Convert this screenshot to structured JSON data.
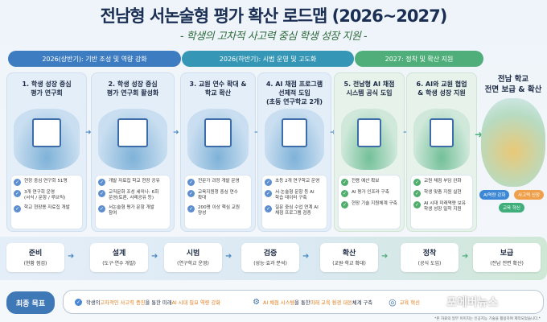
{
  "title": "전남형 서논술형 평가 확산 로드맵 (2026~2027)",
  "subtitle": "- 학생의 고차적 사고력 중심 학생 성장 지원 -",
  "phases": [
    {
      "label": "2026(상반기): 기반 조성 및 역량 강화",
      "color": "#3d7cc0"
    },
    {
      "label": "2026(하반기): 시범 운영 및 고도화",
      "color": "#3596b5"
    },
    {
      "label": "2027: 정착 및 확산 지원",
      "color": "#4fae7a"
    }
  ],
  "cards": [
    {
      "title": "1. 학생 성장 중심\n평가 연구회",
      "bullets": [
        "현장 중심 연구회 51명",
        "3개 연구회 운영\n(서식 / 문항 / 루브릭)",
        "학교 현장용 자료집 개발"
      ]
    },
    {
      "title": "2. 학생 성장 중심\n평가 연구회 활성화",
      "bullets": [
        "개발 자료집 학교 현장 공유",
        "교직문화 조성 세미나: 6회\n운영(토론, 사례공유 등)",
        "서논술형 평가 문항 개발\n참여"
      ]
    },
    {
      "title": "3. 교원 연수 확대 &\n학교 확산",
      "bullets": [
        "전문가 과정 개발 운영",
        "교육지원청 중심 연수\n확대",
        "200명 이상 핵심 교원\n양성"
      ]
    },
    {
      "title": "4. AI 채점 프로그램\n선제적 도입\n(초등 연구학교 2개)",
      "bullets": [
        "초등 2개 연구학교 운영",
        "서·논술형 문항 등 AI\n학습 데이터 구축",
        "질문 중심 수업 연계 AI\n채점 프로그램 검증"
      ]
    },
    {
      "title": "5. 전남형 AI 채점\n시스템 공식 도입",
      "bullets": [
        "전용 예산 확보",
        "AI 평가 인프라 구축",
        "현장 기술 지원체계 구축"
      ]
    },
    {
      "title": "6. AI와 교원 협업\n& 학생 성장 지원",
      "bullets": [
        "교원 채점 부담 완화",
        "학생 맞춤 지원 실현",
        "AI 시대 미래역량 보유\n학생 성장 밀착 지원"
      ]
    }
  ],
  "final": {
    "title": "전남 학교\n전면 보급 & 확산",
    "pills": [
      {
        "label": "AI역량 강화",
        "color": "#3d88d6"
      },
      {
        "label": "사고력 신장",
        "color": "#f0a04b"
      },
      {
        "label": "교육 혁신",
        "color": "#3fae7a"
      }
    ]
  },
  "steps": [
    {
      "title": "준비",
      "sub": "(현황 점검)"
    },
    {
      "title": "설계",
      "sub": "(도구·연수 개발)"
    },
    {
      "title": "시범",
      "sub": "(연구학교 운영)"
    },
    {
      "title": "검증",
      "sub": "(성능·효과 분석)"
    },
    {
      "title": "확산",
      "sub": "(교원·학교 확대)"
    },
    {
      "title": "정착",
      "sub": "(공식 도입)"
    },
    {
      "title": "보급",
      "sub": "(전남 전면 확산)"
    }
  ],
  "goal": {
    "label": "최종 목표",
    "items": [
      {
        "pre": "학생의 ",
        "hl": "고차적인 사고력 증진",
        "mid": "을 통한 미래 ",
        "hl2": "AI 시대 필요 역량 강화",
        "post": ""
      },
      {
        "pre": "",
        "hl": "AI 채점 시스템",
        "mid": "을 통한 ",
        "hl2": "미래 교육 환경 대응",
        "post": " 체계 구축"
      },
      {
        "pre": "",
        "hl": "교육 혁신",
        "mid": "",
        "hl2": "미래형",
        "post": ""
      }
    ]
  },
  "watermark": "포에버뉴스",
  "footnote": "*본 자료의 일부 이미지는 인공지능 기술을 활용하여 제작되었습니다.*"
}
